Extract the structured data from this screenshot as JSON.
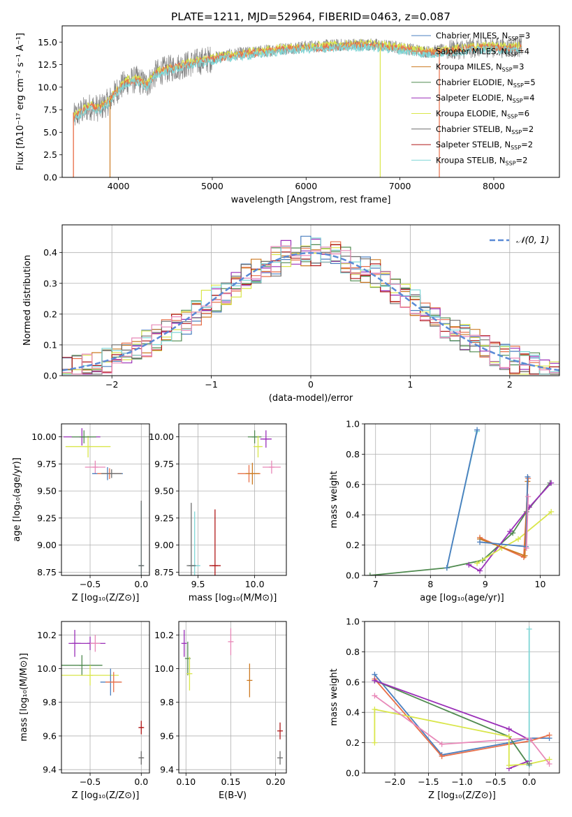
{
  "figure_title": "PLATE=1211, MJD=52964, FIBERID=0463, z=0.087",
  "colors": {
    "chabrier_miles": "#4a7fbf",
    "salpeter_miles": "#e8704a",
    "kroupa_miles": "#cc7a22",
    "chabrier_elodie": "#4f8a4f",
    "salpeter_elodie": "#9a2fb8",
    "kroupa_elodie": "#d9e64a",
    "chabrier_stelib": "#6e6e6e",
    "salpeter_stelib": "#b01818",
    "kroupa_stelib": "#7fd6d6",
    "pink": "#e888b8",
    "gauss": "#5a8ad6",
    "grid": "#b0b0b0"
  },
  "chart_data": [
    {
      "id": "spectrum",
      "type": "line",
      "title": "PLATE=1211, MJD=52964, FIBERID=0463, z=0.087",
      "xlabel": "wavelength [Angstrom, rest frame]",
      "ylabel": "Flux [fλ10⁻¹⁷ erg cm⁻² s⁻¹ A⁻¹]",
      "xlim": [
        3400,
        8700
      ],
      "ylim": [
        0,
        16.8
      ],
      "xticks": [
        4000,
        5000,
        6000,
        7000,
        8000
      ],
      "xtick_labels": [
        "4000",
        "5000",
        "6000",
        "7000",
        "8000"
      ],
      "yticks": [
        0,
        2.5,
        5,
        7.5,
        10,
        12.5,
        15
      ],
      "ytick_labels": [
        "0.0",
        "2.5",
        "5.0",
        "7.5",
        "10.0",
        "12.5",
        "15.0"
      ],
      "grid": false,
      "legend_position": "top-right",
      "legend": [
        {
          "label": "Chabrier MILES, N",
          "sub": "SSP",
          "eq": "=3",
          "color_key": "chabrier_miles"
        },
        {
          "label": "Salpeter MILES, N",
          "sub": "SSP",
          "eq": "=4",
          "color_key": "salpeter_miles"
        },
        {
          "label": "Kroupa MILES, N",
          "sub": "SSP",
          "eq": "=3",
          "color_key": "kroupa_miles"
        },
        {
          "label": "Chabrier ELODIE, N",
          "sub": "SSP",
          "eq": "=5",
          "color_key": "chabrier_elodie"
        },
        {
          "label": "Salpeter ELODIE, N",
          "sub": "SSP",
          "eq": "=4",
          "color_key": "salpeter_elodie"
        },
        {
          "label": "Kroupa ELODIE, N",
          "sub": "SSP",
          "eq": "=6",
          "color_key": "kroupa_elodie"
        },
        {
          "label": "Chabrier STELIB, N",
          "sub": "SSP",
          "eq": "=2",
          "color_key": "chabrier_stelib"
        },
        {
          "label": "Salpeter STELIB, N",
          "sub": "SSP",
          "eq": "=2",
          "color_key": "salpeter_stelib"
        },
        {
          "label": "Kroupa STELIB, N",
          "sub": "SSP",
          "eq": "=2",
          "color_key": "kroupa_stelib"
        }
      ],
      "continuum": [
        [
          3520,
          6.8
        ],
        [
          3600,
          7.4
        ],
        [
          3700,
          8.0
        ],
        [
          3800,
          7.8
        ],
        [
          3900,
          8.6
        ],
        [
          4000,
          10.0
        ],
        [
          4100,
          10.8
        ],
        [
          4200,
          11.0
        ],
        [
          4300,
          10.4
        ],
        [
          4400,
          11.7
        ],
        [
          4500,
          12.1
        ],
        [
          4700,
          12.6
        ],
        [
          4900,
          13.1
        ],
        [
          5100,
          13.5
        ],
        [
          5300,
          13.8
        ],
        [
          5500,
          14.0
        ],
        [
          5700,
          14.3
        ],
        [
          5900,
          14.5
        ],
        [
          6100,
          14.6
        ],
        [
          6300,
          14.7
        ],
        [
          6500,
          14.8
        ],
        [
          6700,
          14.8
        ],
        [
          6900,
          14.6
        ],
        [
          7100,
          14.3
        ],
        [
          7300,
          14.0
        ],
        [
          7500,
          14.2
        ],
        [
          7700,
          14.4
        ],
        [
          7900,
          14.6
        ],
        [
          8100,
          14.5
        ],
        [
          8300,
          14.6
        ]
      ],
      "data_noise_amplitude": 2.6,
      "dips": [
        {
          "wavelength": 3520,
          "flux": 0.0,
          "color_key": "salpeter_miles"
        },
        {
          "wavelength": 3910,
          "flux": 0.0,
          "color_key": "kroupa_miles"
        },
        {
          "wavelength": 6790,
          "flux": 0.0,
          "color_key": "kroupa_elodie"
        },
        {
          "wavelength": 7420,
          "flux": 0.0,
          "color_key": "salpeter_miles"
        }
      ]
    },
    {
      "id": "residual_hist",
      "type": "histogram",
      "xlabel": "(data-model)/error",
      "ylabel": "Normed distribution",
      "xlim": [
        -2.5,
        2.5
      ],
      "ylim": [
        0,
        0.49
      ],
      "xticks": [
        -2,
        -1,
        0,
        1,
        2
      ],
      "xtick_labels": [
        "−2",
        "−1",
        "0",
        "1",
        "2"
      ],
      "yticks": [
        0,
        0.1,
        0.2,
        0.3,
        0.4
      ],
      "ytick_labels": [
        "0.0",
        "0.1",
        "0.2",
        "0.3",
        "0.4"
      ],
      "grid": true,
      "legend_position": "top-right",
      "legend": [
        {
          "label": "𝒩(0, 1)",
          "style": "dashed",
          "color_key": "gauss"
        }
      ],
      "bin_width": 0.1,
      "series_color_keys": [
        "chabrier_miles",
        "salpeter_miles",
        "kroupa_miles",
        "chabrier_elodie",
        "salpeter_elodie",
        "kroupa_elodie",
        "chabrier_stelib",
        "salpeter_stelib",
        "kroupa_stelib",
        "pink"
      ],
      "bin_scatter": 0.045
    },
    {
      "id": "age_vs_Z",
      "type": "scatter",
      "xlabel": "Z [log₁₀(Z/Z⊙)]",
      "ylabel": "age  [log₁₀(age/yr)]",
      "xlim": [
        -0.78,
        0.08
      ],
      "ylim": [
        8.72,
        10.12
      ],
      "xticks": [
        -0.5,
        0.0
      ],
      "xtick_labels": [
        "−0.5",
        "0.0"
      ],
      "yticks": [
        8.75,
        9.0,
        9.25,
        9.5,
        9.75,
        10.0
      ],
      "ytick_labels": [
        "8.75",
        "9.00",
        "9.25",
        "9.50",
        "9.75",
        "10.00"
      ],
      "grid": true,
      "points": [
        {
          "x": -0.58,
          "y": 10.0,
          "xerr": 0.18,
          "yerr": 0.08,
          "color_key": "salpeter_elodie"
        },
        {
          "x": -0.52,
          "y": 9.91,
          "xerr": 0.22,
          "yerr": 0.1,
          "color_key": "kroupa_elodie"
        },
        {
          "x": -0.56,
          "y": 10.0,
          "xerr": 0.12,
          "yerr": 0.06,
          "color_key": "chabrier_elodie"
        },
        {
          "x": -0.45,
          "y": 9.72,
          "xerr": 0.1,
          "yerr": 0.06,
          "color_key": "pink"
        },
        {
          "x": -0.33,
          "y": 9.66,
          "xerr": 0.15,
          "yerr": 0.06,
          "color_key": "chabrier_miles"
        },
        {
          "x": -0.31,
          "y": 9.66,
          "xerr": 0.12,
          "yerr": 0.05,
          "color_key": "salpeter_miles"
        },
        {
          "x": -0.29,
          "y": 9.66,
          "xerr": 0.1,
          "yerr": 0.04,
          "color_key": "chabrier_stelib"
        },
        {
          "x": 0.0,
          "y": 8.81,
          "xerr": 0.02,
          "yerr": 0.58,
          "color_key": "kroupa_stelib"
        },
        {
          "x": 0.0,
          "y": 8.81,
          "xerr": 0.02,
          "yerr": 0.6,
          "color_key": "chabrier_stelib"
        }
      ]
    },
    {
      "id": "age_vs_mass",
      "type": "scatter",
      "xlabel": "mass [log₁₀(M/M⊙)]",
      "ylabel": "",
      "xlim": [
        9.33,
        10.28
      ],
      "ylim": [
        8.72,
        10.12
      ],
      "xticks": [
        9.5,
        10.0
      ],
      "xtick_labels": [
        "9.5",
        "10.0"
      ],
      "yticks": [
        8.75,
        9.0,
        9.25,
        9.5,
        9.75,
        10.0
      ],
      "ytick_labels": [
        "8.75",
        "9.00",
        "9.25",
        "9.50",
        "9.75",
        "10.00"
      ],
      "grid": true,
      "points": [
        {
          "x": 10.0,
          "y": 10.0,
          "xerr": 0.06,
          "yerr": 0.06,
          "color_key": "chabrier_elodie"
        },
        {
          "x": 10.1,
          "y": 9.98,
          "xerr": 0.05,
          "yerr": 0.08,
          "color_key": "salpeter_elodie"
        },
        {
          "x": 10.03,
          "y": 9.91,
          "xerr": 0.04,
          "yerr": 0.1,
          "color_key": "kroupa_elodie"
        },
        {
          "x": 10.15,
          "y": 9.72,
          "xerr": 0.08,
          "yerr": 0.06,
          "color_key": "pink"
        },
        {
          "x": 9.95,
          "y": 9.66,
          "xerr": 0.1,
          "yerr": 0.08,
          "color_key": "salpeter_miles"
        },
        {
          "x": 9.98,
          "y": 9.66,
          "xerr": 0.06,
          "yerr": 0.1,
          "color_key": "kroupa_miles"
        },
        {
          "x": 9.47,
          "y": 8.81,
          "xerr": 0.05,
          "yerr": 0.5,
          "color_key": "kroupa_stelib"
        },
        {
          "x": 9.44,
          "y": 8.81,
          "xerr": 0.04,
          "yerr": 0.58,
          "color_key": "chabrier_stelib"
        },
        {
          "x": 9.65,
          "y": 8.81,
          "xerr": 0.05,
          "yerr": 0.52,
          "color_key": "salpeter_stelib"
        }
      ]
    },
    {
      "id": "massweight_vs_age",
      "type": "line",
      "xlabel": "age  [log₁₀(age/yr)]",
      "ylabel": "mass weight",
      "xlim": [
        6.8,
        10.35
      ],
      "ylim": [
        0,
        1.0
      ],
      "xticks": [
        7,
        8,
        9,
        10
      ],
      "xtick_labels": [
        "7",
        "8",
        "9",
        "10"
      ],
      "yticks": [
        0,
        0.2,
        0.4,
        0.6,
        0.8,
        1.0
      ],
      "ytick_labels": [
        "0.0",
        "0.2",
        "0.4",
        "0.6",
        "0.8",
        "1.0"
      ],
      "grid": true,
      "series": [
        {
          "color_key": "chabrier_elodie",
          "x": [
            6.9,
            8.3,
            8.95,
            9.5,
            9.75,
            10.18
          ],
          "y": [
            0.0,
            0.05,
            0.1,
            0.28,
            0.42,
            0.61
          ]
        },
        {
          "color_key": "kroupa_stelib",
          "x": [
            8.3,
            8.85
          ],
          "y": [
            0.05,
            0.95
          ]
        },
        {
          "color_key": "chabrier_miles",
          "x": [
            8.3,
            8.85
          ],
          "y": [
            0.05,
            0.96
          ]
        },
        {
          "color_key": "salpeter_elodie",
          "x": [
            8.7,
            8.9,
            9.45,
            9.8,
            10.2
          ],
          "y": [
            0.07,
            0.03,
            0.29,
            0.45,
            0.61
          ]
        },
        {
          "color_key": "kroupa_elodie",
          "x": [
            8.85,
            9.3,
            9.6,
            10.2
          ],
          "y": [
            0.08,
            0.18,
            0.24,
            0.42
          ]
        },
        {
          "color_key": "salpeter_miles",
          "x": [
            8.9,
            9.7,
            9.78
          ],
          "y": [
            0.25,
            0.12,
            0.64
          ]
        },
        {
          "color_key": "kroupa_miles",
          "x": [
            8.9,
            9.72,
            9.77
          ],
          "y": [
            0.24,
            0.13,
            0.62
          ]
        },
        {
          "color_key": "chabrier_miles",
          "x": [
            8.9,
            9.74,
            9.77
          ],
          "y": [
            0.22,
            0.19,
            0.65
          ]
        },
        {
          "color_key": "pink",
          "x": [
            9.75,
            9.78
          ],
          "y": [
            0.18,
            0.52
          ]
        }
      ]
    },
    {
      "id": "mass_vs_Z",
      "type": "scatter",
      "xlabel": "Z [log₁₀(Z/Z⊙)]",
      "ylabel": "mass [log₁₀(M/M⊙)]",
      "xlim": [
        -0.78,
        0.08
      ],
      "ylim": [
        9.38,
        10.28
      ],
      "xticks": [
        -0.5,
        0.0
      ],
      "xtick_labels": [
        "−0.5",
        "0.0"
      ],
      "yticks": [
        9.4,
        9.6,
        9.8,
        10.0,
        10.2
      ],
      "ytick_labels": [
        "9.4",
        "9.6",
        "9.8",
        "10.0",
        "10.2"
      ],
      "grid": true,
      "points": [
        {
          "x": -0.65,
          "y": 10.15,
          "xerr": 0.06,
          "yerr": 0.08,
          "color_key": "salpeter_elodie"
        },
        {
          "x": -0.5,
          "y": 10.15,
          "xerr": 0.15,
          "yerr": 0.04,
          "color_key": "salpeter_elodie"
        },
        {
          "x": -0.58,
          "y": 10.02,
          "xerr": 0.2,
          "yerr": 0.06,
          "color_key": "chabrier_elodie"
        },
        {
          "x": -0.45,
          "y": 10.15,
          "xerr": 0.05,
          "yerr": 0.05,
          "color_key": "pink"
        },
        {
          "x": -0.5,
          "y": 9.96,
          "xerr": 0.28,
          "yerr": 0.06,
          "color_key": "kroupa_elodie"
        },
        {
          "x": -0.3,
          "y": 9.92,
          "xerr": 0.1,
          "yerr": 0.08,
          "color_key": "chabrier_miles"
        },
        {
          "x": -0.27,
          "y": 9.92,
          "xerr": 0.08,
          "yerr": 0.06,
          "color_key": "salpeter_miles"
        },
        {
          "x": 0.0,
          "y": 9.65,
          "xerr": 0.02,
          "yerr": 0.04,
          "color_key": "salpeter_stelib"
        },
        {
          "x": 0.0,
          "y": 9.47,
          "xerr": 0.02,
          "yerr": 0.04,
          "color_key": "chabrier_stelib"
        }
      ]
    },
    {
      "id": "mass_vs_ebv",
      "type": "scatter",
      "xlabel": "E(B-V)",
      "ylabel": "",
      "xlim": [
        0.092,
        0.212
      ],
      "ylim": [
        9.38,
        10.28
      ],
      "xticks": [
        0.1,
        0.15,
        0.2
      ],
      "xtick_labels": [
        "0.10",
        "0.15",
        "0.20"
      ],
      "yticks": [
        9.4,
        9.6,
        9.8,
        10.0,
        10.2
      ],
      "ytick_labels": [
        "9.4",
        "9.6",
        "9.8",
        "10.0",
        "10.2"
      ],
      "grid": true,
      "points": [
        {
          "x": 0.098,
          "y": 10.15,
          "xerr": 0.0,
          "yerr": 0.08,
          "color_key": "salpeter_elodie"
        },
        {
          "x": 0.102,
          "y": 10.06,
          "xerr": 0.0,
          "yerr": 0.1,
          "color_key": "chabrier_elodie"
        },
        {
          "x": 0.104,
          "y": 9.97,
          "xerr": 0.0,
          "yerr": 0.1,
          "color_key": "kroupa_elodie"
        },
        {
          "x": 0.15,
          "y": 10.16,
          "xerr": 0.0,
          "yerr": 0.08,
          "color_key": "pink"
        },
        {
          "x": 0.171,
          "y": 9.93,
          "xerr": 0.0,
          "yerr": 0.1,
          "color_key": "kroupa_miles"
        },
        {
          "x": 0.205,
          "y": 9.63,
          "xerr": 0.0,
          "yerr": 0.05,
          "color_key": "salpeter_stelib"
        },
        {
          "x": 0.205,
          "y": 9.47,
          "xerr": 0.0,
          "yerr": 0.04,
          "color_key": "chabrier_stelib"
        }
      ]
    },
    {
      "id": "massweight_vs_Z",
      "type": "line",
      "xlabel": "Z [log₁₀(Z/Z⊙)]",
      "ylabel": "mass weight",
      "xlim": [
        -2.45,
        0.45
      ],
      "ylim": [
        0,
        1.0
      ],
      "xticks": [
        -2.0,
        -1.5,
        -1.0,
        -0.5,
        0.0
      ],
      "xtick_labels": [
        "−2.0",
        "−1.5",
        "−1.0",
        "−0.5",
        "0.0"
      ],
      "yticks": [
        0,
        0.2,
        0.4,
        0.6,
        0.8,
        1.0
      ],
      "ytick_labels": [
        "0.0",
        "0.2",
        "0.4",
        "0.6",
        "0.8",
        "1.0"
      ],
      "grid": true,
      "series": [
        {
          "color_key": "chabrier_miles",
          "x": [
            -2.3,
            -1.3,
            -0.3,
            0.0,
            0.3
          ],
          "y": [
            0.65,
            0.12,
            0.2,
            0.23,
            0.23
          ]
        },
        {
          "color_key": "salpeter_miles",
          "x": [
            -2.3,
            -1.3,
            -0.3,
            0.0,
            0.3
          ],
          "y": [
            0.62,
            0.11,
            0.19,
            0.21,
            0.25
          ]
        },
        {
          "color_key": "chabrier_elodie",
          "x": [
            -2.3,
            -0.3,
            0.0
          ],
          "y": [
            0.61,
            0.24,
            0.05
          ]
        },
        {
          "color_key": "salpeter_elodie",
          "x": [
            -2.3,
            -0.3,
            0.0
          ],
          "y": [
            0.61,
            0.29,
            0.22
          ]
        },
        {
          "color_key": "salpeter_elodie",
          "x": [
            -0.3,
            0.0
          ],
          "y": [
            0.03,
            0.08
          ]
        },
        {
          "color_key": "kroupa_elodie",
          "x": [
            -2.3,
            -2.3,
            -0.3,
            -0.3,
            0.0,
            0.3
          ],
          "y": [
            0.2,
            0.42,
            0.24,
            0.05,
            0.06,
            0.09
          ]
        },
        {
          "color_key": "pink",
          "x": [
            -2.3,
            -1.3,
            0.0,
            0.3
          ],
          "y": [
            0.51,
            0.19,
            0.23,
            0.06
          ]
        },
        {
          "color_key": "kroupa_stelib",
          "x": [
            0.0,
            0.0
          ],
          "y": [
            0.05,
            0.95
          ]
        },
        {
          "color_key": "chabrier_stelib",
          "x": [
            0.0
          ],
          "y": [
            0.06
          ]
        }
      ]
    }
  ]
}
